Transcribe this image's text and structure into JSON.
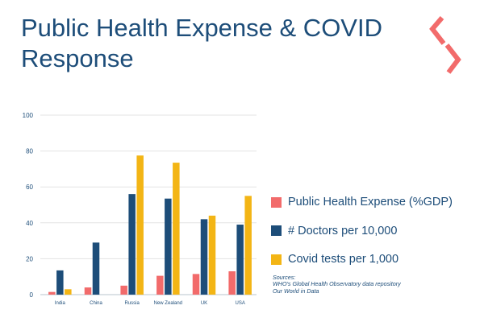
{
  "title": "Public Health Expense & COVID Response",
  "logo": {
    "icon": "brand-chevron-icon",
    "color": "#f26b6b"
  },
  "chart_data": {
    "type": "bar",
    "categories": [
      "India",
      "China",
      "Russia",
      "New Zealand",
      "UK",
      "USA"
    ],
    "series": [
      {
        "name": "Public Health Expense (%GDP)",
        "color": "#f26b6b",
        "values": [
          1.5,
          4,
          5,
          10.5,
          11.5,
          13
        ]
      },
      {
        "name": "# Doctors per 10,000",
        "color": "#1d4d79",
        "values": [
          13.5,
          29,
          56,
          53.5,
          42,
          39
        ]
      },
      {
        "name": "Covid tests per 1,000",
        "color": "#f3b515",
        "values": [
          3,
          0,
          77.5,
          73.5,
          44,
          55
        ]
      }
    ],
    "ylim": [
      0,
      100
    ],
    "yticks": [
      "0",
      "20",
      "40",
      "60",
      "80",
      "100"
    ],
    "grid": true,
    "legend_position": "right"
  },
  "sources": [
    "Sources:",
    "WHO's Global Health Observatory data repository",
    "Our World in Data"
  ]
}
